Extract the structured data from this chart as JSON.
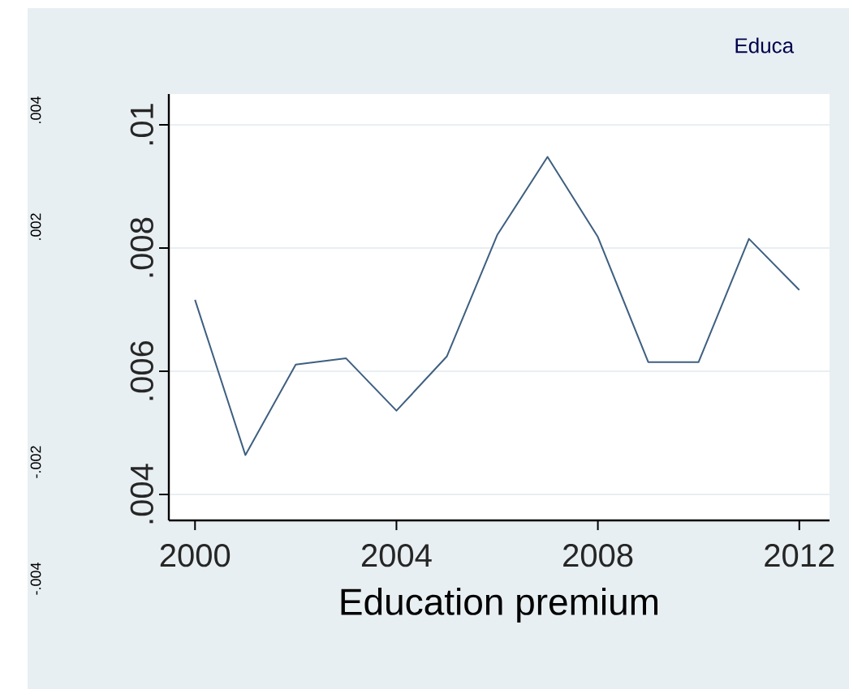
{
  "chart_data": {
    "type": "line",
    "xlabel": "Education premium",
    "x": [
      2000,
      2001,
      2002,
      2003,
      2004,
      2005,
      2006,
      2007,
      2008,
      2009,
      2010,
      2011,
      2012
    ],
    "series": [
      {
        "color": "#3e5f80",
        "values": [
          0.00716,
          0.00464,
          0.00611,
          0.00621,
          0.00536,
          0.00624,
          0.00821,
          0.00948,
          0.00818,
          0.00615,
          0.00615,
          0.00815,
          0.00732
        ]
      }
    ],
    "xlim": [
      1999.48,
      2012.6
    ],
    "ylim": [
      0.00358,
      0.0105
    ],
    "xticks": [
      2000,
      2004,
      2008,
      2012
    ],
    "yticks": [
      {
        "value": 0.004,
        "label": ".004"
      },
      {
        "value": 0.006,
        "label": ".006"
      },
      {
        "value": 0.008,
        "label": ".008"
      },
      {
        "value": 0.01,
        "label": ".01"
      }
    ],
    "grid": "y",
    "line_style": "solid",
    "marker": "none",
    "annotations": [
      "Educa",
      ".004",
      ".002",
      "-.002",
      "-.004"
    ]
  }
}
